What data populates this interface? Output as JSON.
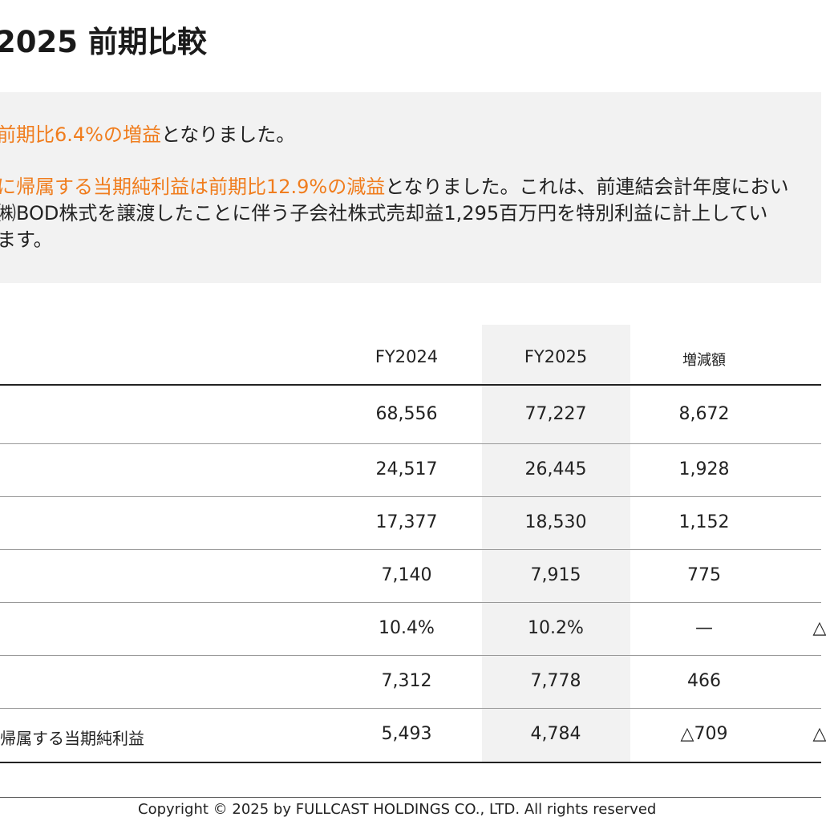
{
  "title": "2025 前期比較",
  "summary": {
    "p1": {
      "hl": "前期比6.4%の増益",
      "rest": "となりました。"
    },
    "p2": {
      "line1_hl": "に帰属する当期純利益は前期比12.9%の減益",
      "line1_rest": "となりました。これは、前連結会計年度におい",
      "line2": "㈱BOD株式を譲渡したことに伴う子会社株式売却益1,295百万円を特別利益に計上してい",
      "line3": "ます。"
    }
  },
  "table": {
    "headers": [
      "FY2024",
      "FY2025",
      "増減額"
    ],
    "rows": [
      {
        "label": "",
        "fy2024": "68,556",
        "fy2025": "77,227",
        "change": "8,672",
        "extra": ""
      },
      {
        "label": "",
        "fy2024": "24,517",
        "fy2025": "26,445",
        "change": "1,928",
        "extra": ""
      },
      {
        "label": "",
        "fy2024": "17,377",
        "fy2025": "18,530",
        "change": "1,152",
        "extra": ""
      },
      {
        "label": "",
        "fy2024": "7,140",
        "fy2025": "7,915",
        "change": "775",
        "extra": ""
      },
      {
        "label": "",
        "fy2024": "10.4%",
        "fy2025": "10.2%",
        "change": "—",
        "extra": "△"
      },
      {
        "label": "",
        "fy2024": "7,312",
        "fy2025": "7,778",
        "change": "466",
        "extra": ""
      },
      {
        "label": "帰属する当期純利益",
        "fy2024": "5,493",
        "fy2025": "4,784",
        "change": "△709",
        "extra": "△"
      }
    ]
  },
  "footer": "Copyright © 2025 by FULLCAST HOLDINGS CO., LTD. All rights reserved",
  "colors": {
    "accent": "#f07d1e",
    "panel": "#f2f2f2",
    "text": "#222222"
  }
}
